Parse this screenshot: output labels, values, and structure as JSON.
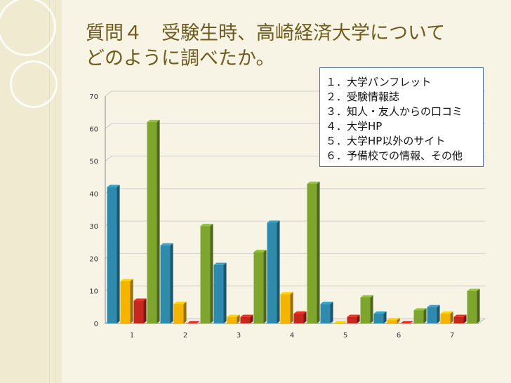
{
  "title_line1": "質問４　受験生時、高崎経済大学について",
  "title_line2": "どのように調べたか。",
  "legend": [
    "１．大学パンフレット",
    "２．受験情報誌",
    "３．知人・友人からの口コミ",
    "４．大学HP",
    "５．大学HP以外のサイト",
    "６．予備校での情報、その他"
  ],
  "colors": {
    "teal": "#2e8bab",
    "amber": "#f5b400",
    "red": "#c8271d",
    "green": "#7ea62e",
    "background": "#f7f4e6",
    "title": "#6e5c1e"
  },
  "chart_data": {
    "type": "bar",
    "style": "3d-clustered",
    "categories": [
      "1",
      "2",
      "3",
      "4",
      "5",
      "6",
      "7"
    ],
    "series": [
      {
        "color": "#2e8bab",
        "values": [
          42,
          24,
          18,
          31,
          6,
          3,
          5
        ]
      },
      {
        "color": "#f5b400",
        "values": [
          13,
          6,
          2,
          9,
          0,
          1,
          3
        ]
      },
      {
        "color": "#c8271d",
        "values": [
          7,
          0,
          2,
          3,
          2,
          0,
          2
        ]
      },
      {
        "color": "#7ea62e",
        "values": [
          62,
          30,
          22,
          43,
          8,
          4,
          10
        ]
      }
    ],
    "yticks": [
      0,
      10,
      20,
      30,
      40,
      50,
      60,
      70
    ],
    "ylim": [
      0,
      70
    ],
    "grid": true,
    "legend_position": "top-right"
  }
}
